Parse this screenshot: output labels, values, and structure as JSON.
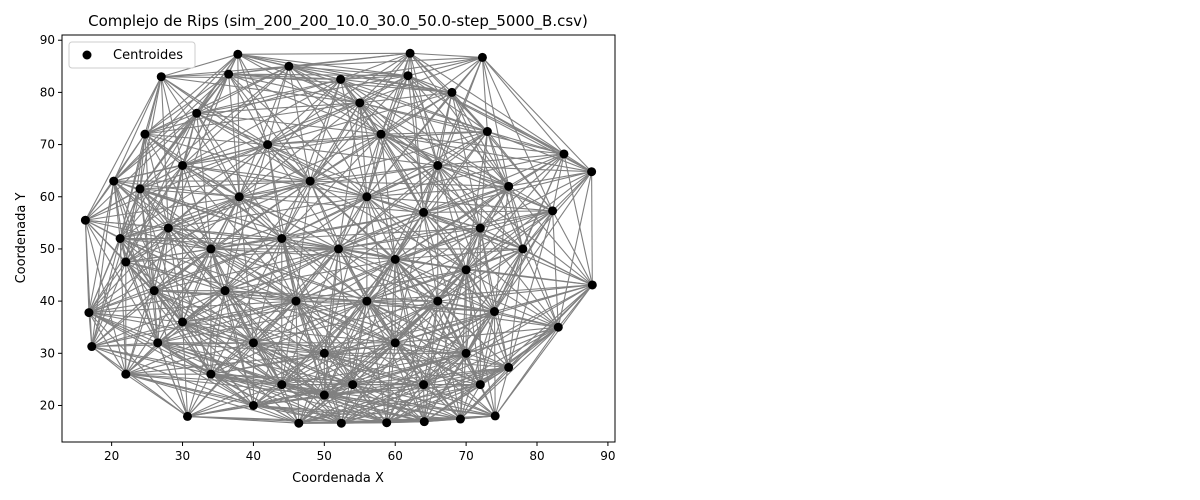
{
  "chart_data": {
    "type": "scatter",
    "title": "Complejo de Rips (sim_200_200_10.0_30.0_50.0-step_5000_B.csv)",
    "xlabel": "Coordenada X",
    "ylabel": "Coordenada Y",
    "xlim": [
      13,
      91
    ],
    "ylim": [
      13,
      91
    ],
    "xticks": [
      20,
      30,
      40,
      50,
      60,
      70,
      80,
      90
    ],
    "yticks": [
      20,
      30,
      40,
      50,
      60,
      70,
      80,
      90
    ],
    "legend": {
      "entries": [
        "Centroides"
      ],
      "placement": "top-left"
    },
    "grid": false,
    "colors": {
      "points": "#000000",
      "edges": "#808080"
    },
    "series": [
      {
        "name": "Centroides",
        "points": [
          [
            37.8,
            87.3
          ],
          [
            62.1,
            87.5
          ],
          [
            72.3,
            86.7
          ],
          [
            27.0,
            83.0
          ],
          [
            36.5,
            83.5
          ],
          [
            52.3,
            82.5
          ],
          [
            61.8,
            83.2
          ],
          [
            24.7,
            72.0
          ],
          [
            73.0,
            72.5
          ],
          [
            83.8,
            68.2
          ],
          [
            87.7,
            64.8
          ],
          [
            20.3,
            63.0
          ],
          [
            24.0,
            61.5
          ],
          [
            82.2,
            57.3
          ],
          [
            16.3,
            55.5
          ],
          [
            21.2,
            52.0
          ],
          [
            22.0,
            47.5
          ],
          [
            87.8,
            43.1
          ],
          [
            16.8,
            37.8
          ],
          [
            83.0,
            35.0
          ],
          [
            17.2,
            31.3
          ],
          [
            26.5,
            32.0
          ],
          [
            76.0,
            27.3
          ],
          [
            22.0,
            26.0
          ],
          [
            30.7,
            17.9
          ],
          [
            46.4,
            16.6
          ],
          [
            52.4,
            16.6
          ],
          [
            58.8,
            16.7
          ],
          [
            64.1,
            16.9
          ],
          [
            69.2,
            17.4
          ],
          [
            74.1,
            18.0
          ],
          [
            45.0,
            85.0
          ],
          [
            55.0,
            78.0
          ],
          [
            68.0,
            80.0
          ],
          [
            32.0,
            76.0
          ],
          [
            42.0,
            70.0
          ],
          [
            58.0,
            72.0
          ],
          [
            66.0,
            66.0
          ],
          [
            76.0,
            62.0
          ],
          [
            30.0,
            66.0
          ],
          [
            38.0,
            60.0
          ],
          [
            48.0,
            63.0
          ],
          [
            56.0,
            60.0
          ],
          [
            64.0,
            57.0
          ],
          [
            72.0,
            54.0
          ],
          [
            28.0,
            54.0
          ],
          [
            34.0,
            50.0
          ],
          [
            44.0,
            52.0
          ],
          [
            52.0,
            50.0
          ],
          [
            60.0,
            48.0
          ],
          [
            70.0,
            46.0
          ],
          [
            78.0,
            50.0
          ],
          [
            26.0,
            42.0
          ],
          [
            36.0,
            42.0
          ],
          [
            46.0,
            40.0
          ],
          [
            56.0,
            40.0
          ],
          [
            66.0,
            40.0
          ],
          [
            74.0,
            38.0
          ],
          [
            30.0,
            36.0
          ],
          [
            40.0,
            32.0
          ],
          [
            50.0,
            30.0
          ],
          [
            60.0,
            32.0
          ],
          [
            70.0,
            30.0
          ],
          [
            34.0,
            26.0
          ],
          [
            44.0,
            24.0
          ],
          [
            54.0,
            24.0
          ],
          [
            64.0,
            24.0
          ],
          [
            72.0,
            24.0
          ],
          [
            40.0,
            20.0
          ],
          [
            50.0,
            22.0
          ]
        ]
      }
    ]
  }
}
